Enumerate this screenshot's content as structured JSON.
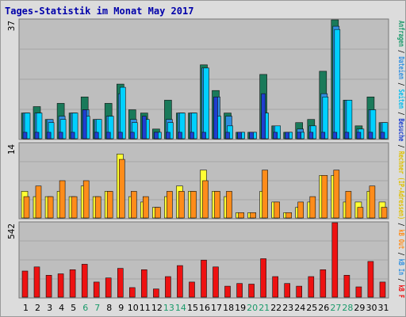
{
  "title": "Tages-Statistik im Monat May 2017",
  "colors": {
    "anfragen": "#1a7a5a",
    "dateien": "#2f8fe0",
    "seiten": "#00d0ff",
    "besuche": "#1e3fd0",
    "rechner": "#ffff33",
    "kb_out": "#ff8c1a",
    "kb_f": "#ee1111",
    "weekend_label": "#1a9a6a",
    "weekday_label": "#000000"
  },
  "right_labels": [
    {
      "text": "Anfragen",
      "color": "#1a9a6a"
    },
    {
      "text": " / ",
      "color": "#000000"
    },
    {
      "text": "Dateien",
      "color": "#2f8fe0"
    },
    {
      "text": " / ",
      "color": "#000000"
    },
    {
      "text": "Seiten",
      "color": "#00bbee"
    },
    {
      "text": " / ",
      "color": "#000000"
    },
    {
      "text": "Besuche",
      "color": "#1e3fd0"
    },
    {
      "text": " / ",
      "color": "#000000"
    },
    {
      "text": "Rechner (IP-Adressen)",
      "color": "#e0c000"
    },
    {
      "text": " / ",
      "color": "#000000"
    },
    {
      "text": "kB Out",
      "color": "#ff8c1a"
    },
    {
      "text": " / ",
      "color": "#000000"
    },
    {
      "text": "kB In",
      "color": "#2f8fe0"
    },
    {
      "text": " / ",
      "color": "#000000"
    },
    {
      "text": "kB F",
      "color": "#ee1111"
    }
  ],
  "chart_data": {
    "type": "bar",
    "days": [
      "1",
      "2",
      "3",
      "4",
      "5",
      "6",
      "7",
      "8",
      "9",
      "10",
      "11",
      "12",
      "13",
      "14",
      "15",
      "16",
      "17",
      "18",
      "19",
      "20",
      "21",
      "22",
      "23",
      "24",
      "25",
      "26",
      "27",
      "28",
      "29",
      "30",
      "31"
    ],
    "weekend_days": [
      "6",
      "7",
      "13",
      "14",
      "20",
      "21",
      "27",
      "28"
    ],
    "panels": [
      {
        "ymax_label": "37",
        "ymax": 37,
        "series": [
          {
            "name": "Anfragen",
            "values": [
              8,
              10,
              6,
              11,
              8,
              13,
              6,
              11,
              17,
              9,
              8,
              3,
              12,
              8,
              8,
              23,
              15,
              8,
              2,
              2,
              20,
              4,
              2,
              5,
              6,
              21,
              37,
              12,
              4,
              13,
              5
            ]
          },
          {
            "name": "Dateien",
            "values": [
              8,
              8,
              6,
              7,
              8,
              9,
              6,
              7,
              14,
              6,
              6,
              2,
              6,
              8,
              8,
              22,
              13,
              7,
              2,
              2,
              8,
              4,
              2,
              3,
              4,
              14,
              35,
              12,
              3,
              9,
              5
            ]
          },
          {
            "name": "Seiten",
            "values": [
              8,
              8,
              5,
              6,
              8,
              7,
              6,
              7,
              16,
              5,
              6,
              2,
              5,
              8,
              8,
              22,
              7,
              4,
              2,
              2,
              8,
              4,
              2,
              2,
              4,
              13,
              34,
              12,
              3,
              9,
              5
            ]
          },
          {
            "name": "Besuche",
            "values": [
              2,
              2,
              2,
              2,
              2,
              9,
              2,
              2,
              2,
              2,
              7,
              2,
              2,
              2,
              2,
              2,
              13,
              2,
              2,
              2,
              14,
              2,
              2,
              2,
              2,
              2,
              2,
              2,
              2,
              2,
              2
            ]
          }
        ]
      },
      {
        "ymax_label": "14",
        "ymax": 14,
        "series": [
          {
            "name": "Rechner (IP-Adressen)",
            "values": [
              5,
              4,
              4,
              5,
              4,
              6,
              4,
              5,
              12,
              4,
              3,
              2,
              4,
              6,
              5,
              9,
              5,
              4,
              1,
              1,
              5,
              3,
              1,
              2,
              3,
              8,
              8,
              3,
              3,
              5,
              3
            ]
          },
          {
            "name": "kB Out",
            "values": [
              4,
              6,
              4,
              7,
              4,
              7,
              4,
              5,
              11,
              5,
              4,
              2,
              5,
              5,
              5,
              7,
              5,
              5,
              1,
              1,
              9,
              3,
              1,
              3,
              4,
              8,
              9,
              5,
              2,
              6,
              2
            ]
          }
        ]
      },
      {
        "ymax_label": "542",
        "ymax": 542,
        "series": [
          {
            "name": "kB F",
            "values": [
              190,
              220,
              160,
              170,
              200,
              240,
              110,
              140,
              210,
              70,
              200,
              60,
              150,
              230,
              110,
              270,
              220,
              80,
              100,
              95,
              280,
              150,
              100,
              80,
              150,
              200,
              542,
              160,
              75,
              260,
              110
            ]
          }
        ]
      }
    ]
  }
}
